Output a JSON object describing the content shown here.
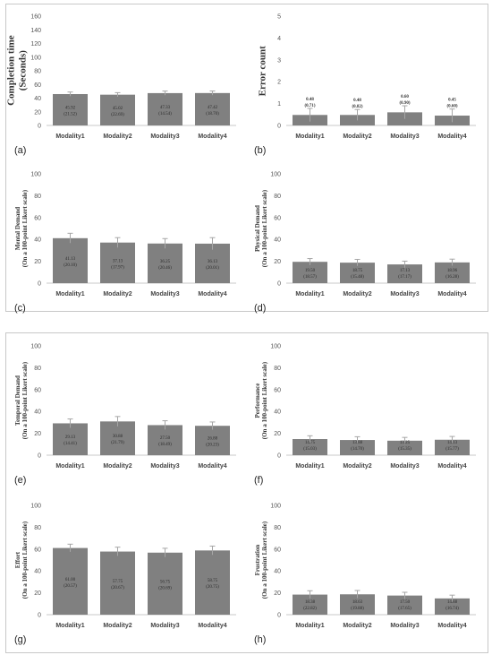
{
  "chart_data": [
    {
      "label": "(a)",
      "type": "bar",
      "categories": [
        "Modality1",
        "Modality2",
        "Modality3",
        "Modality4"
      ],
      "values": [
        45.92,
        45.02,
        47.33,
        47.42
      ],
      "errors": [
        3.0,
        3.0,
        3.0,
        3.0
      ],
      "sd_labels": [
        "(21.52)",
        "(22.69)",
        "(14.54)",
        "(18.70)"
      ],
      "mean_labels": [
        "45.92",
        "45.02",
        "47.33",
        "47.42"
      ],
      "ylabel": [
        "Completion time",
        "(Seconds)"
      ],
      "ylim": [
        0,
        160
      ],
      "ticks": [
        0,
        20,
        40,
        60,
        80,
        100,
        120,
        140,
        160
      ],
      "labels_above": false
    },
    {
      "label": "(b)",
      "type": "bar",
      "categories": [
        "Modality1",
        "Modality2",
        "Modality3",
        "Modality4"
      ],
      "values": [
        0.48,
        0.48,
        0.6,
        0.45
      ],
      "errors": [
        0.3,
        0.25,
        0.3,
        0.3
      ],
      "sd_labels": [
        "(0.71)",
        "(0.82)",
        "(0.90)",
        "(0.60)"
      ],
      "mean_labels": [
        "0.48",
        "0.48",
        "0.60",
        "0.45"
      ],
      "ylabel": [
        "Error count"
      ],
      "ylim": [
        0,
        5
      ],
      "ticks": [
        0,
        1,
        2,
        3,
        4,
        5
      ],
      "labels_above": true
    },
    {
      "label": "(c)",
      "type": "bar",
      "categories": [
        "Modality1",
        "Modality2",
        "Modality3",
        "Modality4"
      ],
      "values": [
        41.13,
        37.13,
        36.25,
        36.13
      ],
      "errors": [
        4.5,
        4.5,
        4.5,
        5.5
      ],
      "sd_labels": [
        "(20.10)",
        "(17.97)",
        "(20.46)",
        "(20.01)"
      ],
      "mean_labels": [
        "41.13",
        "37.13",
        "36.25",
        "36.13"
      ],
      "ylabel": [
        "Mental Demand",
        "(On a 100-point Likert scale)"
      ],
      "ylim": [
        0,
        100
      ],
      "ticks": [
        0,
        20,
        40,
        60,
        80,
        100
      ],
      "labels_above": false
    },
    {
      "label": "(d)",
      "type": "bar",
      "categories": [
        "Modality1",
        "Modality2",
        "Modality3",
        "Modality4"
      ],
      "values": [
        19.5,
        18.75,
        17.13,
        18.96
      ],
      "errors": [
        3.0,
        3.0,
        3.0,
        3.0
      ],
      "sd_labels": [
        "(18.57)",
        "(15.48)",
        "(17.17)",
        "(16.28)"
      ],
      "mean_labels": [
        "19.50",
        "18.75",
        "17.13",
        "18.96"
      ],
      "ylabel": [
        "Physical Demand",
        "(On a 100-point Likert scale)"
      ],
      "ylim": [
        0,
        100
      ],
      "ticks": [
        0,
        20,
        40,
        60,
        80,
        100
      ],
      "labels_above": false
    },
    {
      "label": "(e)",
      "type": "bar",
      "categories": [
        "Modality1",
        "Modality2",
        "Modality3",
        "Modality4"
      ],
      "values": [
        29.13,
        30.88,
        27.5,
        26.88
      ],
      "errors": [
        4.0,
        4.5,
        4.0,
        3.5
      ],
      "sd_labels": [
        "(14.41)",
        "(21.79)",
        "(18.49)",
        "(20.23)"
      ],
      "mean_labels": [
        "29.13",
        "30.88",
        "27.50",
        "26.88"
      ],
      "ylabel": [
        "Temporal Demand",
        "(On a 100-point Likert scale)"
      ],
      "ylim": [
        0,
        100
      ],
      "ticks": [
        0,
        20,
        40,
        60,
        80,
        100
      ],
      "labels_above": false
    },
    {
      "label": "(f)",
      "type": "bar",
      "categories": [
        "Modality1",
        "Modality2",
        "Modality3",
        "Modality4"
      ],
      "values": [
        14.75,
        13.88,
        13.25,
        14.13
      ],
      "errors": [
        3.0,
        3.0,
        3.0,
        3.0
      ],
      "sd_labels": [
        "(15.03)",
        "(14.70)",
        "(15.35)",
        "(15.77)"
      ],
      "mean_labels": [
        "14.75",
        "13.88",
        "13.25",
        "14.13"
      ],
      "ylabel": [
        "Performance",
        "(On a 100-point Likert scale)"
      ],
      "ylim": [
        0,
        100
      ],
      "ticks": [
        0,
        20,
        40,
        60,
        80,
        100
      ],
      "labels_above": false
    },
    {
      "label": "(g)",
      "type": "bar",
      "categories": [
        "Modality1",
        "Modality2",
        "Modality3",
        "Modality4"
      ],
      "values": [
        61.0,
        57.75,
        56.75,
        58.75
      ],
      "errors": [
        3.5,
        4.0,
        4.0,
        4.0
      ],
      "sd_labels": [
        "(20.57)",
        "(20.67)",
        "(20.69)",
        "(20.75)"
      ],
      "mean_labels": [
        "61.00",
        "57.75",
        "56.75",
        "58.75"
      ],
      "ylabel": [
        "Effort",
        "(On a 100-point Likert scale)"
      ],
      "ylim": [
        0,
        100
      ],
      "ticks": [
        0,
        20,
        40,
        60,
        80,
        100
      ],
      "labels_above": false
    },
    {
      "label": "(h)",
      "type": "bar",
      "categories": [
        "Modality1",
        "Modality2",
        "Modality3",
        "Modality4"
      ],
      "values": [
        18.38,
        18.63,
        17.5,
        14.88
      ],
      "errors": [
        3.5,
        3.5,
        3.0,
        3.0
      ],
      "sd_labels": [
        "(22.82)",
        "(19.88)",
        "(17.65)",
        "(16.74)"
      ],
      "mean_labels": [
        "18.38",
        "18.63",
        "17.50",
        "14.88"
      ],
      "ylabel": [
        "Frustration",
        "(On a 100-point Likert scale)"
      ],
      "ylim": [
        0,
        100
      ],
      "ticks": [
        0,
        20,
        40,
        60,
        80,
        100
      ],
      "labels_above": false
    }
  ]
}
